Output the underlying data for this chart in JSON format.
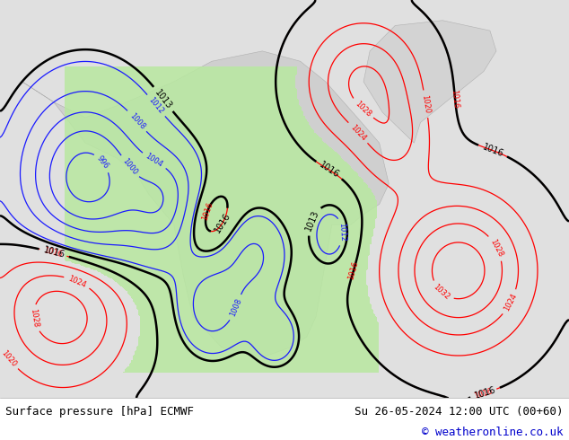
{
  "title_left": "Surface pressure [hPa] ECMWF",
  "title_right": "Su 26-05-2024 12:00 UTC (00+60)",
  "copyright": "© weatheronline.co.uk",
  "fig_width": 6.34,
  "fig_height": 4.9,
  "dpi": 100,
  "bottom_bar_color": "#ffffff",
  "bottom_text_color": "#000000",
  "copyright_color": "#0000cc",
  "font_size_bottom": 9,
  "ocean_color": "#e8e8e8",
  "land_color": "#c8c8c8",
  "green_fill": "#b8e8a0"
}
